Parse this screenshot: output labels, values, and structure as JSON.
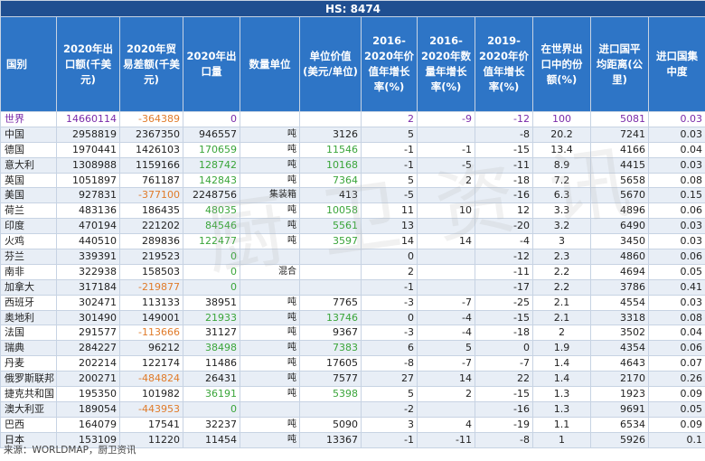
{
  "title": "HS: 8474",
  "headers": [
    "国别",
    "2020年出口额(千美元)",
    "2020年贸易差额(千美元)",
    "2020年出口量",
    "数量单位",
    "单位价值(美元/单位)",
    "2016-2020年价值年增长率(%)",
    "2016-2020年数量年增长率(%)",
    "2019-2020年价值年增长率(%)",
    "在世界出口中的份额(%)",
    "进口国平均距离(公里)",
    "进口国集中度"
  ],
  "rows": [
    {
      "country": "世界",
      "export": "14660114",
      "balance": "-364389",
      "qty": "0",
      "unit": "",
      "uv": "",
      "g1": "2",
      "g2": "-9",
      "g3": "-12",
      "share": "100",
      "dist": "5081",
      "conc": "0.03"
    },
    {
      "country": "中国",
      "export": "2958819",
      "balance": "2367350",
      "qty": "946557",
      "unit": "吨",
      "uv": "3126",
      "g1": "5",
      "g2": "",
      "g3": "-8",
      "share": "20.2",
      "dist": "7241",
      "conc": "0.03"
    },
    {
      "country": "德国",
      "export": "1970441",
      "balance": "1426103",
      "qty": "170659",
      "unit": "吨",
      "uv": "11546",
      "g1": "-1",
      "g2": "-1",
      "g3": "-15",
      "share": "13.4",
      "dist": "4166",
      "conc": "0.04"
    },
    {
      "country": "意大利",
      "export": "1308988",
      "balance": "1159166",
      "qty": "128742",
      "unit": "吨",
      "uv": "10168",
      "g1": "-1",
      "g2": "-5",
      "g3": "-11",
      "share": "8.9",
      "dist": "4415",
      "conc": "0.03"
    },
    {
      "country": "英国",
      "export": "1051897",
      "balance": "761187",
      "qty": "142843",
      "unit": "吨",
      "uv": "7364",
      "g1": "5",
      "g2": "2",
      "g3": "-18",
      "share": "7.2",
      "dist": "5658",
      "conc": "0.08"
    },
    {
      "country": "美国",
      "export": "927831",
      "balance": "-377100",
      "qty": "2248756",
      "unit": "集装箱",
      "uv": "413",
      "g1": "-5",
      "g2": "",
      "g3": "-16",
      "share": "6.3",
      "dist": "5670",
      "conc": "0.15"
    },
    {
      "country": "荷兰",
      "export": "483136",
      "balance": "186435",
      "qty": "48035",
      "unit": "吨",
      "uv": "10058",
      "g1": "11",
      "g2": "10",
      "g3": "12",
      "share": "3.3",
      "dist": "4896",
      "conc": "0.06"
    },
    {
      "country": "印度",
      "export": "470194",
      "balance": "221202",
      "qty": "84546",
      "unit": "吨",
      "uv": "5561",
      "g1": "13",
      "g2": "",
      "g3": "-20",
      "share": "3.2",
      "dist": "6490",
      "conc": "0.03"
    },
    {
      "country": "火鸡",
      "export": "440510",
      "balance": "289836",
      "qty": "122477",
      "unit": "吨",
      "uv": "3597",
      "g1": "14",
      "g2": "14",
      "g3": "-4",
      "share": "3",
      "dist": "3450",
      "conc": "0.03"
    },
    {
      "country": "芬兰",
      "export": "339391",
      "balance": "219523",
      "qty": "0",
      "unit": "",
      "uv": "",
      "g1": "0",
      "g2": "",
      "g3": "-12",
      "share": "2.3",
      "dist": "4860",
      "conc": "0.06"
    },
    {
      "country": "南非",
      "export": "322938",
      "balance": "158503",
      "qty": "0",
      "unit": "混合",
      "uv": "",
      "g1": "2",
      "g2": "",
      "g3": "-11",
      "share": "2.2",
      "dist": "4694",
      "conc": "0.05"
    },
    {
      "country": "加拿大",
      "export": "317184",
      "balance": "-219877",
      "qty": "0",
      "unit": "",
      "uv": "",
      "g1": "-1",
      "g2": "",
      "g3": "-17",
      "share": "2.2",
      "dist": "3786",
      "conc": "0.41"
    },
    {
      "country": "西班牙",
      "export": "302471",
      "balance": "113133",
      "qty": "38951",
      "unit": "吨",
      "uv": "7765",
      "g1": "-3",
      "g2": "-7",
      "g3": "-25",
      "share": "2.1",
      "dist": "4554",
      "conc": "0.03"
    },
    {
      "country": "奥地利",
      "export": "301490",
      "balance": "149001",
      "qty": "21933",
      "unit": "吨",
      "uv": "13746",
      "g1": "0",
      "g2": "-4",
      "g3": "-15",
      "share": "2.1",
      "dist": "3318",
      "conc": "0.08"
    },
    {
      "country": "法国",
      "export": "291577",
      "balance": "-113666",
      "qty": "31127",
      "unit": "吨",
      "uv": "9367",
      "g1": "-3",
      "g2": "-4",
      "g3": "-18",
      "share": "2",
      "dist": "3502",
      "conc": "0.04"
    },
    {
      "country": "瑞典",
      "export": "284227",
      "balance": "96212",
      "qty": "38498",
      "unit": "吨",
      "uv": "7383",
      "g1": "6",
      "g2": "5",
      "g3": "0",
      "share": "1.9",
      "dist": "4354",
      "conc": "0.06"
    },
    {
      "country": "丹麦",
      "export": "202214",
      "balance": "122174",
      "qty": "11486",
      "unit": "吨",
      "uv": "17605",
      "g1": "-8",
      "g2": "-7",
      "g3": "-7",
      "share": "1.4",
      "dist": "4643",
      "conc": "0.07"
    },
    {
      "country": "俄罗斯联邦",
      "export": "200271",
      "balance": "-484824",
      "qty": "26431",
      "unit": "吨",
      "uv": "7577",
      "g1": "27",
      "g2": "14",
      "g3": "22",
      "share": "1.4",
      "dist": "2170",
      "conc": "0.26"
    },
    {
      "country": "捷克共和国",
      "export": "195350",
      "balance": "101982",
      "qty": "36191",
      "unit": "吨",
      "uv": "5398",
      "g1": "5",
      "g2": "2",
      "g3": "-15",
      "share": "1.3",
      "dist": "1923",
      "conc": "0.09"
    },
    {
      "country": "澳大利亚",
      "export": "189054",
      "balance": "-443953",
      "qty": "0",
      "unit": "",
      "uv": "",
      "g1": "-2",
      "g2": "",
      "g3": "-16",
      "share": "1.3",
      "dist": "9691",
      "conc": "0.05"
    },
    {
      "country": "巴西",
      "export": "164079",
      "balance": "17541",
      "qty": "32237",
      "unit": "吨",
      "uv": "5090",
      "g1": "3",
      "g2": "4",
      "g3": "-19",
      "share": "1.1",
      "dist": "6534",
      "conc": "0.09"
    },
    {
      "country": "日本",
      "export": "153109",
      "balance": "11220",
      "qty": "11454",
      "unit": "吨",
      "uv": "13367",
      "g1": "-1",
      "g2": "-11",
      "g3": "-8",
      "share": "1",
      "dist": "5926",
      "conc": "0.1"
    }
  ],
  "watermark": "厨卫资讯",
  "source": "来源：WORLDMAP，厨卫资讯",
  "colors": {
    "header_bg": "#2e75c6",
    "title_bg": "#1f4f91",
    "world_text": "#7a2aa8",
    "negative": "#e07b2a",
    "green": "#3aa53a"
  }
}
